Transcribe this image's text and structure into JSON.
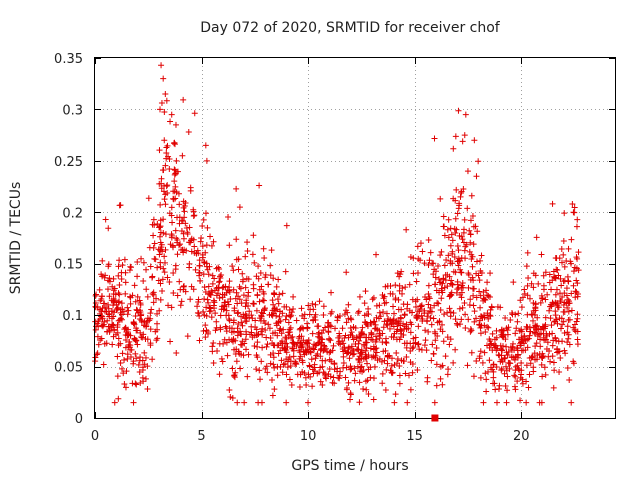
{
  "chart_data": {
    "type": "scatter",
    "title": "Day 072 of 2020, SRMTID for receiver chof",
    "xlabel": "GPS time / hours",
    "ylabel": "SRMTID / TECUs",
    "xlim": [
      0,
      24.4
    ],
    "ylim": [
      0,
      0.35
    ],
    "xticks": [
      0,
      5,
      10,
      15,
      20
    ],
    "xtick_labels": [
      "0",
      "5",
      "10",
      "15",
      "20"
    ],
    "yticks": [
      0,
      0.05,
      0.1,
      0.15,
      0.2,
      0.25,
      0.3,
      0.35
    ],
    "ytick_labels": [
      "0",
      "0.05",
      "0.1",
      "0.15",
      "0.2",
      "0.25",
      "0.3",
      "0.35"
    ],
    "grid": true,
    "marker": "+",
    "marker_color": "#e00000",
    "highlight_marker": {
      "shape": "square",
      "x": 15.95,
      "y": 0.0
    },
    "envelope": [
      {
        "t": 0.0,
        "c": 0.09,
        "s": 0.022
      },
      {
        "t": 0.5,
        "c": 0.11,
        "s": 0.028
      },
      {
        "t": 1.0,
        "c": 0.1,
        "s": 0.03
      },
      {
        "t": 1.5,
        "c": 0.085,
        "s": 0.027
      },
      {
        "t": 2.0,
        "c": 0.075,
        "s": 0.028
      },
      {
        "t": 2.4,
        "c": 0.07,
        "s": 0.03
      },
      {
        "t": 2.8,
        "c": 0.13,
        "s": 0.04
      },
      {
        "t": 3.3,
        "c": 0.19,
        "s": 0.05
      },
      {
        "t": 3.8,
        "c": 0.2,
        "s": 0.045
      },
      {
        "t": 4.3,
        "c": 0.165,
        "s": 0.035
      },
      {
        "t": 5.0,
        "c": 0.14,
        "s": 0.035
      },
      {
        "t": 5.6,
        "c": 0.11,
        "s": 0.03
      },
      {
        "t": 6.5,
        "c": 0.095,
        "s": 0.028
      },
      {
        "t": 7.5,
        "c": 0.1,
        "s": 0.035
      },
      {
        "t": 8.5,
        "c": 0.085,
        "s": 0.03
      },
      {
        "t": 9.5,
        "c": 0.065,
        "s": 0.02
      },
      {
        "t": 10.5,
        "c": 0.07,
        "s": 0.022
      },
      {
        "t": 11.5,
        "c": 0.065,
        "s": 0.022
      },
      {
        "t": 12.5,
        "c": 0.068,
        "s": 0.022
      },
      {
        "t": 13.5,
        "c": 0.07,
        "s": 0.025
      },
      {
        "t": 14.5,
        "c": 0.085,
        "s": 0.03
      },
      {
        "t": 15.2,
        "c": 0.1,
        "s": 0.033
      },
      {
        "t": 16.0,
        "c": 0.1,
        "s": 0.04
      },
      {
        "t": 16.6,
        "c": 0.12,
        "s": 0.04
      },
      {
        "t": 17.1,
        "c": 0.16,
        "s": 0.045
      },
      {
        "t": 17.6,
        "c": 0.15,
        "s": 0.045
      },
      {
        "t": 18.2,
        "c": 0.1,
        "s": 0.03
      },
      {
        "t": 18.7,
        "c": 0.06,
        "s": 0.02
      },
      {
        "t": 19.5,
        "c": 0.065,
        "s": 0.022
      },
      {
        "t": 20.3,
        "c": 0.075,
        "s": 0.026
      },
      {
        "t": 21.0,
        "c": 0.09,
        "s": 0.03
      },
      {
        "t": 21.7,
        "c": 0.1,
        "s": 0.03
      },
      {
        "t": 22.3,
        "c": 0.11,
        "s": 0.035
      },
      {
        "t": 22.7,
        "c": 0.12,
        "s": 0.035
      }
    ],
    "x_span": [
      0.0,
      22.7
    ],
    "num_points": 2100,
    "outliers": [
      [
        3.1,
        0.343
      ],
      [
        3.2,
        0.33
      ],
      [
        3.3,
        0.315
      ],
      [
        3.05,
        0.3
      ],
      [
        3.25,
        0.27
      ],
      [
        3.6,
        0.295
      ],
      [
        3.8,
        0.285
      ],
      [
        4.1,
        0.255
      ],
      [
        4.4,
        0.278
      ],
      [
        5.2,
        0.265
      ],
      [
        5.25,
        0.25
      ],
      [
        17.4,
        0.295
      ],
      [
        17.35,
        0.275
      ],
      [
        17.8,
        0.27
      ],
      [
        17.5,
        0.24
      ],
      [
        17.9,
        0.235
      ],
      [
        7.7,
        0.226
      ],
      [
        22.4,
        0.208
      ],
      [
        22.45,
        0.2
      ],
      [
        1.2,
        0.207
      ],
      [
        0.5,
        0.193
      ],
      [
        6.8,
        0.205
      ],
      [
        16.2,
        0.213
      ],
      [
        14.6,
        0.183
      ],
      [
        9.0,
        0.187
      ]
    ]
  }
}
